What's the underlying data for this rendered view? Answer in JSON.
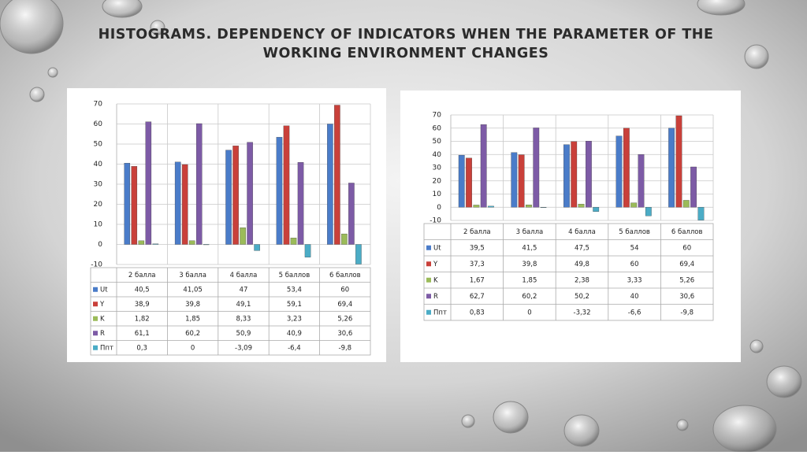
{
  "title": [
    "HISTOGRAMS. DEPENDENCY OF INDICATORS WHEN THE PARAMETER OF THE",
    "WORKING ENVIRONMENT CHANGES"
  ],
  "chart_data": [
    {
      "type": "bar",
      "categories": [
        "2 балла",
        "3 балла",
        "4 балла",
        "5 баллов",
        "6 баллов"
      ],
      "ylim": [
        -10,
        70
      ],
      "yticks": [
        -10,
        0,
        10,
        20,
        30,
        40,
        50,
        60,
        70
      ],
      "grid": true,
      "series": [
        {
          "name": "Ut",
          "color": "#4a7cc9",
          "values": [
            40.5,
            41.05,
            47,
            53.4,
            60
          ],
          "value_labels": [
            "40,5",
            "41,05",
            "47",
            "53,4",
            "60"
          ]
        },
        {
          "name": "Y",
          "color": "#c9403a",
          "values": [
            38.9,
            39.8,
            49.1,
            59.1,
            69.4
          ],
          "value_labels": [
            "38,9",
            "39,8",
            "49,1",
            "59,1",
            "69,4"
          ]
        },
        {
          "name": "K",
          "color": "#9bbb59",
          "values": [
            1.82,
            1.85,
            8.33,
            3.23,
            5.26
          ],
          "value_labels": [
            "1,82",
            "1,85",
            "8,33",
            "3,23",
            "5,26"
          ]
        },
        {
          "name": "R",
          "color": "#7d5ba6",
          "values": [
            61.1,
            60.2,
            50.9,
            40.9,
            30.6
          ],
          "value_labels": [
            "61,1",
            "60,2",
            "50,9",
            "40,9",
            "30,6"
          ]
        },
        {
          "name": "Ппт",
          "color": "#4bacc6",
          "values": [
            0.3,
            0,
            -3.09,
            -6.4,
            -9.8
          ],
          "value_labels": [
            "0,3",
            "0",
            "-3,09",
            "-6,4",
            "-9,8"
          ]
        }
      ]
    },
    {
      "type": "bar",
      "categories": [
        "2 балла",
        "3 балла",
        "4 балла",
        "5 баллов",
        "6 баллов"
      ],
      "ylim": [
        -10,
        70
      ],
      "yticks": [
        -10,
        0,
        10,
        20,
        30,
        40,
        50,
        60,
        70
      ],
      "grid": true,
      "series": [
        {
          "name": "Ut",
          "color": "#4a7cc9",
          "values": [
            39.5,
            41.5,
            47.5,
            54,
            60
          ],
          "value_labels": [
            "39,5",
            "41,5",
            "47,5",
            "54",
            "60"
          ]
        },
        {
          "name": "Y",
          "color": "#c9403a",
          "values": [
            37.3,
            39.8,
            49.8,
            60,
            69.4
          ],
          "value_labels": [
            "37,3",
            "39,8",
            "49,8",
            "60",
            "69,4"
          ]
        },
        {
          "name": "K",
          "color": "#9bbb59",
          "values": [
            1.67,
            1.85,
            2.38,
            3.33,
            5.26
          ],
          "value_labels": [
            "1,67",
            "1,85",
            "2,38",
            "3,33",
            "5,26"
          ]
        },
        {
          "name": "R",
          "color": "#7d5ba6",
          "values": [
            62.7,
            60.2,
            50.2,
            40,
            30.6
          ],
          "value_labels": [
            "62,7",
            "60,2",
            "50,2",
            "40",
            "30,6"
          ]
        },
        {
          "name": "Ппт",
          "color": "#4bacc6",
          "values": [
            0.83,
            0,
            -3.32,
            -6.6,
            -9.8
          ],
          "value_labels": [
            "0,83",
            "0",
            "-3,32",
            "-6,6",
            "-9,8"
          ]
        }
      ]
    }
  ]
}
